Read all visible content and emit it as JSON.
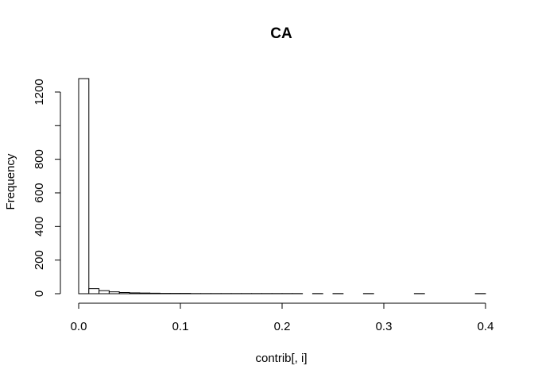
{
  "chart_data": {
    "type": "bar",
    "title": "CA",
    "xlabel": "contrib[, i]",
    "ylabel": "Frequency",
    "xlim": [
      0.0,
      0.4
    ],
    "ylim": [
      0,
      1300
    ],
    "x_ticks": [
      0.0,
      0.1,
      0.2,
      0.3,
      0.4
    ],
    "x_tick_labels": [
      "0.0",
      "0.1",
      "0.2",
      "0.3",
      "0.4"
    ],
    "y_ticks": [
      0,
      200,
      400,
      600,
      800,
      1000,
      1200
    ],
    "y_tick_labels": [
      "0",
      "200",
      "400",
      "600",
      "800",
      "",
      "1200"
    ],
    "bin_width": 0.01,
    "bin_starts": [
      0.0,
      0.01,
      0.02,
      0.03,
      0.04,
      0.05,
      0.06,
      0.07,
      0.08,
      0.09,
      0.1,
      0.11,
      0.12,
      0.13,
      0.14,
      0.15,
      0.16,
      0.17,
      0.18,
      0.19,
      0.2,
      0.21,
      0.22,
      0.23,
      0.24,
      0.25,
      0.26,
      0.27,
      0.28,
      0.29,
      0.3,
      0.31,
      0.32,
      0.33,
      0.34,
      0.35,
      0.36,
      0.37,
      0.38,
      0.39
    ],
    "values": [
      1280,
      30,
      18,
      11,
      7,
      5,
      4,
      3,
      2,
      2,
      2,
      1,
      1,
      1,
      1,
      1,
      1,
      1,
      1,
      1,
      1,
      1,
      0,
      1,
      0,
      1,
      0,
      0,
      1,
      0,
      0,
      0,
      0,
      1,
      0,
      0,
      0,
      0,
      0,
      1
    ],
    "grid": false,
    "legend": "none"
  }
}
